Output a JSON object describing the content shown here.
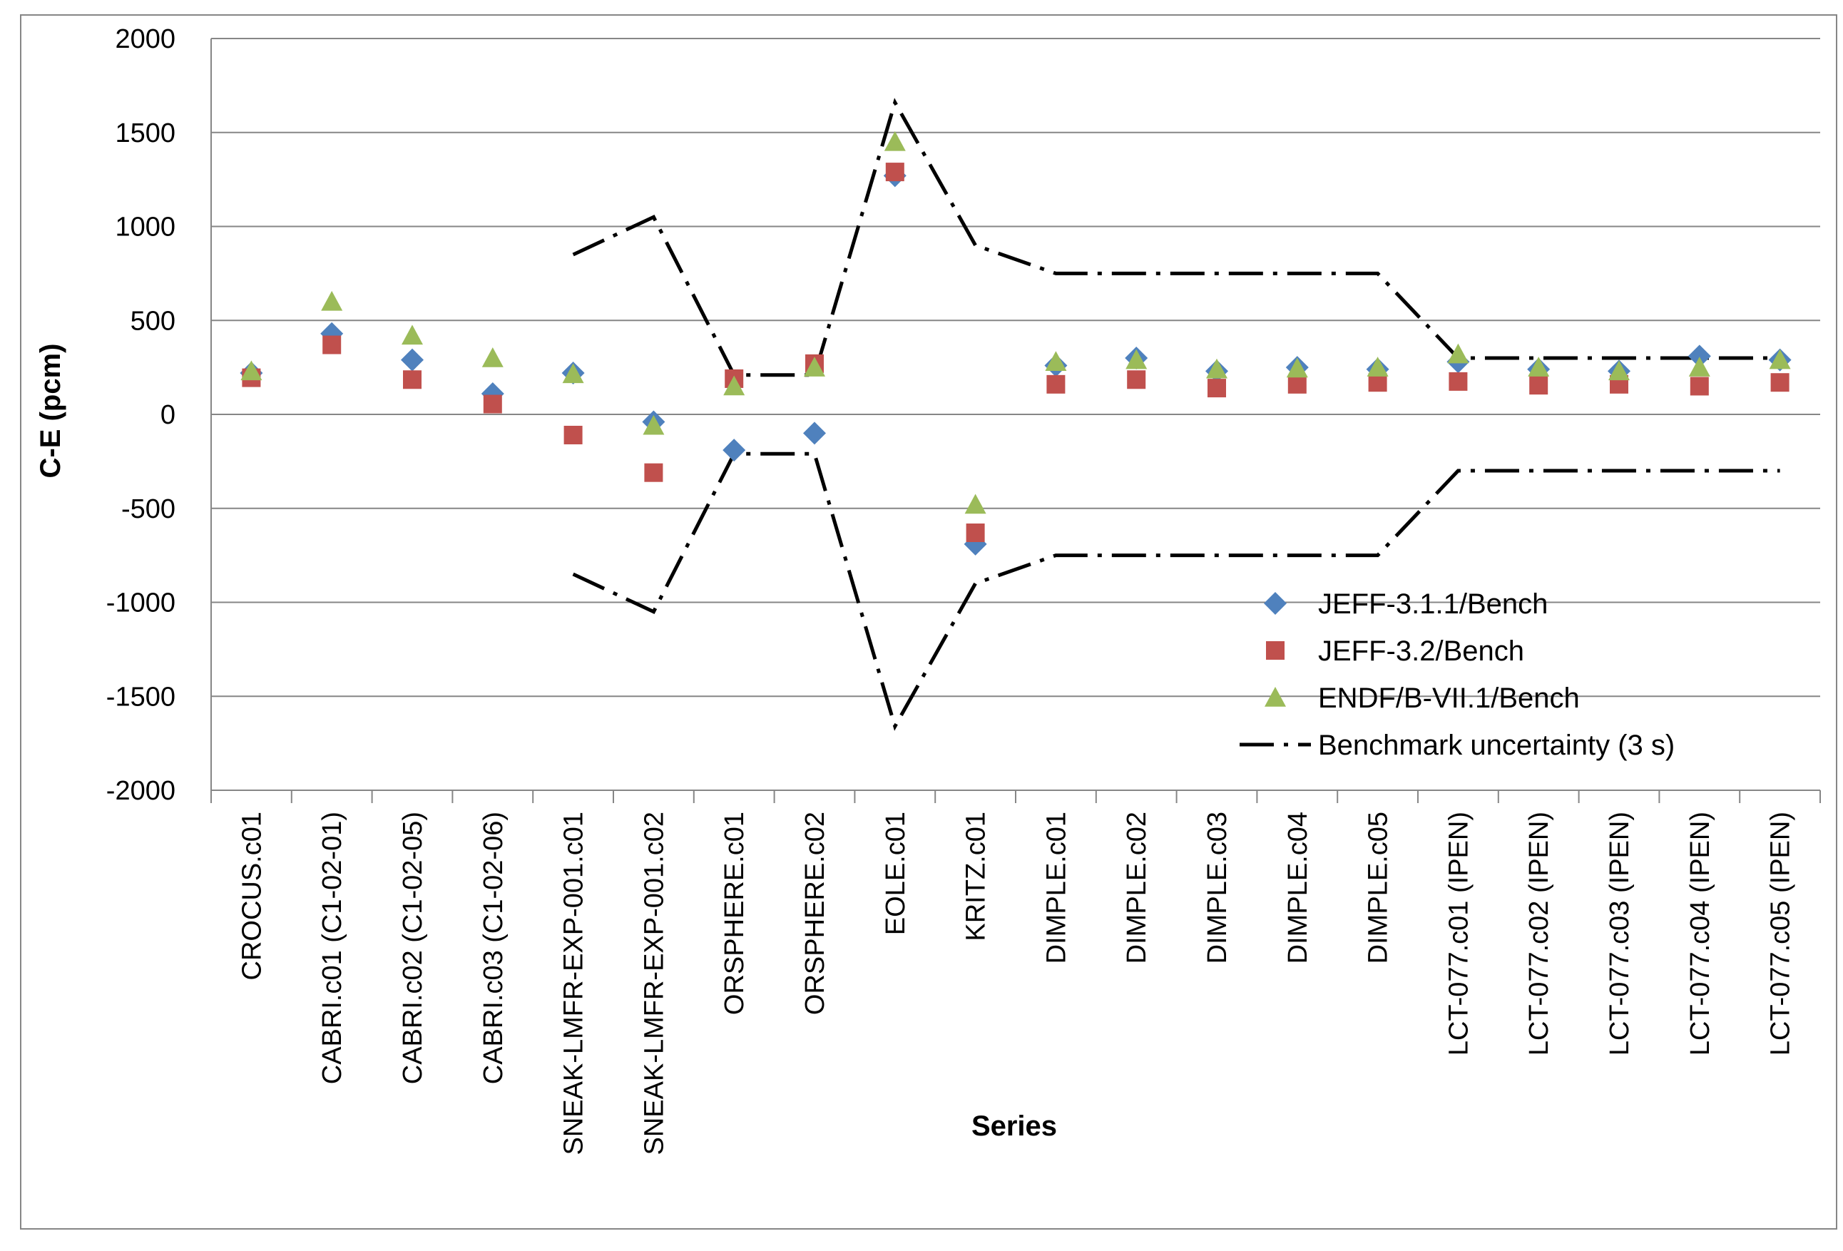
{
  "chart_data": {
    "type": "scatter",
    "title": "",
    "xlabel": "Series",
    "ylabel": "C-E (pcm)",
    "ylim": [
      -2000,
      2000
    ],
    "yticks": [
      2000,
      1500,
      1000,
      500,
      0,
      -500,
      -1000,
      -1500,
      -2000
    ],
    "ytick_labels": [
      "2000",
      "1500",
      "1000",
      "500",
      "0",
      "-500",
      "-1000",
      "-1500",
      "-2000"
    ],
    "grid": true,
    "legend_position": "lower-right",
    "categories": [
      "CROCUS.c01",
      "CABRI.c01 (C1-02-01)",
      "CABRI.c02 (C1-02-05)",
      "CABRI.c03  (C1-02-06)",
      "SNEAK-LMFR-EXP-001.c01",
      "SNEAK-LMFR-EXP-001.c02",
      "ORSPHERE.c01",
      "ORSPHERE.c02",
      "EOLE.c01",
      "KRITZ.c01",
      "DIMPLE.c01",
      "DIMPLE.c02",
      "DIMPLE.c03",
      "DIMPLE.c04",
      "DIMPLE.c05",
      "LCT-077.c01 (IPEN)",
      "LCT-077.c02 (IPEN)",
      "LCT-077.c03 (IPEN)",
      "LCT-077.c04 (IPEN)",
      "LCT-077.c05 (IPEN)"
    ],
    "series": [
      {
        "name": "JEFF-3.1.1/Bench",
        "marker": "diamond",
        "color": "#4f81bd",
        "values": [
          220,
          430,
          290,
          110,
          220,
          -40,
          -190,
          -100,
          1270,
          -690,
          260,
          300,
          230,
          250,
          240,
          280,
          240,
          230,
          310,
          290
        ]
      },
      {
        "name": "JEFF-3.2/Bench",
        "marker": "square",
        "color": "#c0504d",
        "values": [
          195,
          370,
          185,
          55,
          -110,
          -310,
          190,
          270,
          1290,
          -630,
          160,
          185,
          140,
          160,
          170,
          175,
          155,
          160,
          150,
          170
        ]
      },
      {
        "name": "ENDF/B-VII.1/Bench",
        "marker": "triangle",
        "color": "#9bbb59",
        "values": [
          230,
          600,
          420,
          300,
          215,
          -60,
          150,
          250,
          1450,
          -480,
          280,
          290,
          240,
          245,
          250,
          320,
          250,
          230,
          250,
          290
        ]
      },
      {
        "name": "Benchmark uncertainty (3 s)",
        "marker": "dash-dot-line",
        "color": "#000000",
        "start_index": 4,
        "values": [
          850,
          1050,
          210,
          210,
          1660,
          900,
          750,
          750,
          750,
          750,
          750,
          300,
          300,
          300,
          300,
          300
        ]
      }
    ]
  }
}
